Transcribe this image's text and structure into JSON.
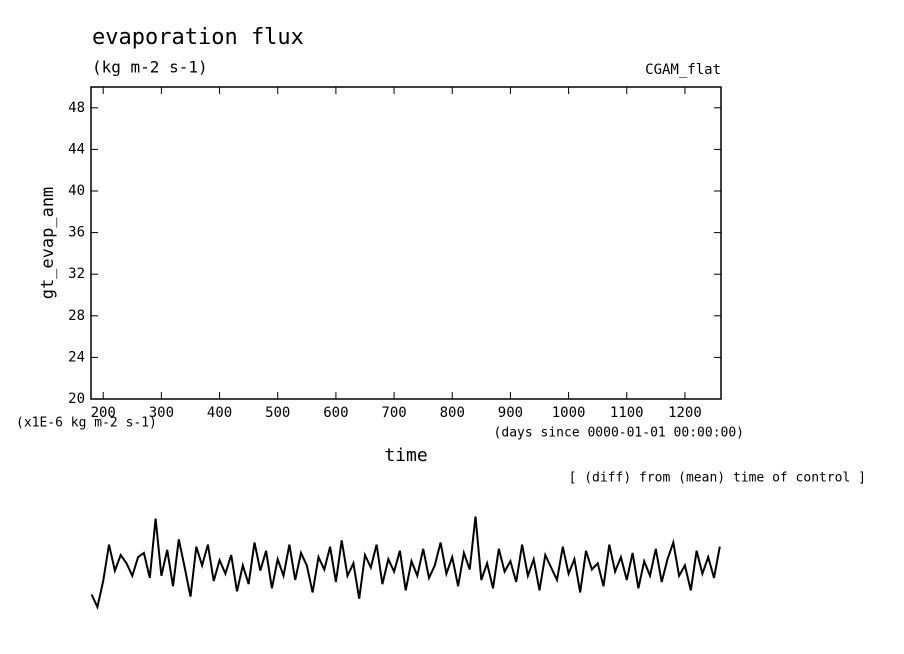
{
  "chart_data": {
    "type": "line",
    "title": "evaporation flux",
    "subtitle": "(kg m-2 s-1)",
    "annotation": "CGAM_flat",
    "y_label": "gt_evap_anm",
    "y_unit_label": "(x1E-6 kg m-2 s-1)",
    "x_label": "time",
    "x_unit_label": "(days since 0000-01-01 00:00:00)",
    "note": "[ (diff) from (mean) time of control ]",
    "xlim": [
      179,
      1262
    ],
    "xticks": [
      200,
      300,
      400,
      500,
      600,
      700,
      800,
      900,
      1000,
      1100,
      1200
    ],
    "ylim": [
      20,
      50
    ],
    "yticks": [
      20,
      24,
      28,
      32,
      36,
      40,
      44,
      48
    ],
    "x": [
      180,
      190,
      200,
      210,
      220,
      230,
      240,
      250,
      260,
      270,
      280,
      290,
      300,
      310,
      320,
      330,
      340,
      350,
      360,
      370,
      380,
      390,
      400,
      410,
      420,
      430,
      440,
      450,
      460,
      470,
      480,
      490,
      500,
      510,
      520,
      530,
      540,
      550,
      560,
      570,
      580,
      590,
      600,
      610,
      620,
      630,
      640,
      650,
      660,
      670,
      680,
      690,
      700,
      710,
      720,
      730,
      740,
      750,
      760,
      770,
      780,
      790,
      800,
      810,
      820,
      830,
      840,
      850,
      860,
      870,
      880,
      890,
      900,
      910,
      920,
      930,
      940,
      950,
      960,
      970,
      980,
      990,
      1000,
      1010,
      1020,
      1030,
      1040,
      1050,
      1060,
      1070,
      1080,
      1090,
      1100,
      1110,
      1120,
      1130,
      1140,
      1150,
      1160,
      1170,
      1180,
      1190,
      1200,
      1210,
      1220,
      1230,
      1240,
      1250,
      1260
    ],
    "series": [
      {
        "color": "#000000",
        "values": [
          1.2,
          0.0,
          2.5,
          6.0,
          3.5,
          5.0,
          4.2,
          3.0,
          4.8,
          5.2,
          2.8,
          8.5,
          3.0,
          5.5,
          2.0,
          6.5,
          3.8,
          1.0,
          5.8,
          4.0,
          6.0,
          2.5,
          4.5,
          3.2,
          5.0,
          1.5,
          4.0,
          2.2,
          6.2,
          3.5,
          5.4,
          1.8,
          4.6,
          3.0,
          6.0,
          2.6,
          5.2,
          4.0,
          1.4,
          4.8,
          3.6,
          5.8,
          2.4,
          6.4,
          3.0,
          4.2,
          0.8,
          5.0,
          3.8,
          6.0,
          2.2,
          4.6,
          3.4,
          5.4,
          1.6,
          4.4,
          3.0,
          5.6,
          2.8,
          4.0,
          6.2,
          3.2,
          4.8,
          2.0,
          5.2,
          3.6,
          8.7,
          2.6,
          4.2,
          1.8,
          5.6,
          3.4,
          4.4,
          2.4,
          6.0,
          3.0,
          4.6,
          1.6,
          5.0,
          3.8,
          2.6,
          5.8,
          3.2,
          4.6,
          1.4,
          5.4,
          3.6,
          4.2,
          2.0,
          6.0,
          3.4,
          4.8,
          2.6,
          5.2,
          1.8,
          4.4,
          3.0,
          5.6,
          2.4,
          4.6,
          6.2,
          3.0,
          4.0,
          1.6,
          5.4,
          3.2,
          4.8,
          2.8,
          5.8
        ]
      }
    ]
  }
}
